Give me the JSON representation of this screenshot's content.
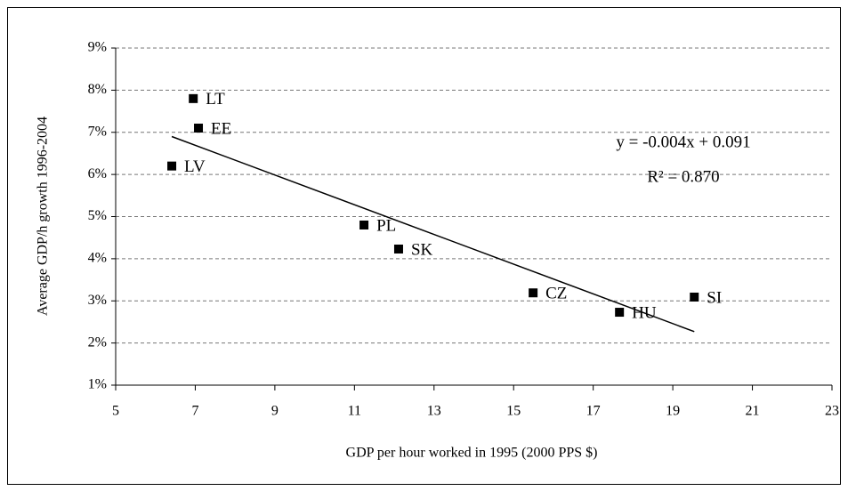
{
  "chart_data": {
    "type": "scatter",
    "x_label": "GDP per hour worked in 1995 (2000 PPS $)",
    "y_label": "Average GDP/h growth 1996-2004",
    "series": [
      {
        "color": "#000000",
        "labels": [
          "LT",
          "EE",
          "LV",
          "PL",
          "SK",
          "CZ",
          "HU",
          "SI"
        ],
        "x": [
          6.95,
          7.08,
          6.41,
          11.24,
          12.11,
          15.49,
          17.66,
          19.54
        ],
        "values": [
          7.8,
          7.1,
          6.2,
          4.8,
          4.23,
          3.19,
          2.73,
          3.09
        ]
      }
    ],
    "trendline": {
      "color": "#000000",
      "x": [
        6.41,
        19.54
      ],
      "y": [
        6.9,
        2.27
      ]
    },
    "annotations": [
      "y = -0.004x + 0.091",
      "R² = 0.870"
    ],
    "xlim": [
      5,
      23
    ],
    "xticks": [
      5,
      7,
      9,
      11,
      13,
      15,
      17,
      19,
      21,
      23
    ],
    "ylim": [
      1,
      9
    ],
    "yticks": [
      {
        "value": 1,
        "label": "1%"
      },
      {
        "value": 2,
        "label": "2%"
      },
      {
        "value": 3,
        "label": "3%"
      },
      {
        "value": 4,
        "label": "4%"
      },
      {
        "value": 5,
        "label": "5%"
      },
      {
        "value": 6,
        "label": "6%"
      },
      {
        "value": 7,
        "label": "7%"
      },
      {
        "value": 8,
        "label": "8%"
      },
      {
        "value": 9,
        "label": "9%"
      }
    ],
    "grid": true
  }
}
